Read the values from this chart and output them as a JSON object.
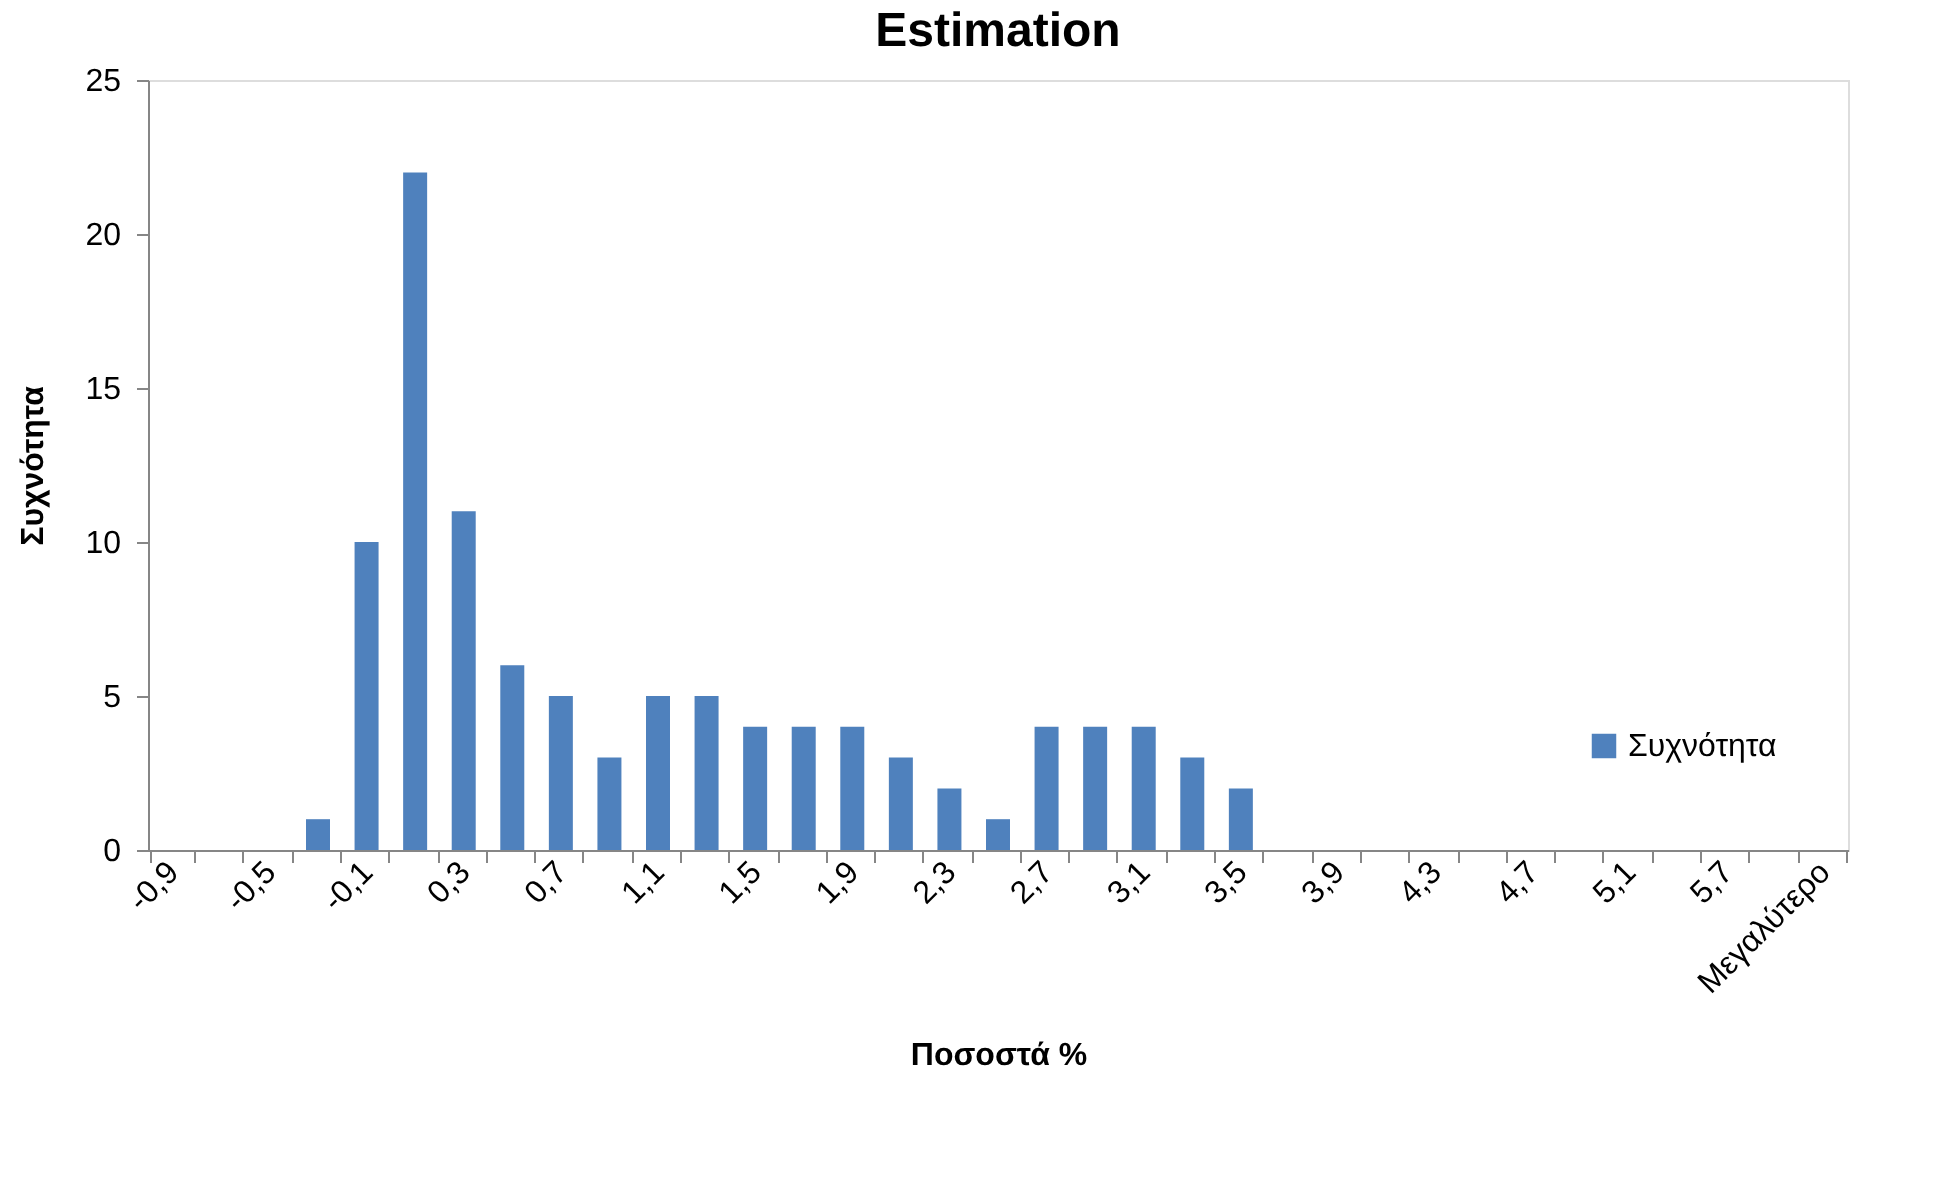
{
  "chart_data": {
    "type": "bar",
    "title": "Estimation",
    "xlabel": "Ποσοστά %",
    "ylabel": "Συχνότητα",
    "categories": [
      "-0,9",
      null,
      "-0,5",
      null,
      "-0,1",
      null,
      "0,3",
      null,
      "0,7",
      null,
      "1,1",
      null,
      "1,5",
      null,
      "1,9",
      null,
      "2,3",
      null,
      "2,7",
      null,
      "3,1",
      null,
      "3,5",
      null,
      "3,9",
      null,
      "4,3",
      null,
      "4,7",
      null,
      "5,1",
      null,
      "5,7",
      null,
      "Μεγαλύτερο"
    ],
    "series": [
      {
        "name": "Συχνότητα",
        "color": "#4f81bd",
        "values": [
          0,
          0,
          0,
          1,
          10,
          22,
          11,
          6,
          5,
          3,
          5,
          5,
          4,
          4,
          4,
          3,
          2,
          1,
          4,
          4,
          4,
          3,
          2,
          0,
          0,
          0,
          0,
          0,
          0,
          0,
          0,
          0,
          0,
          0,
          0
        ]
      }
    ],
    "ylim": [
      0,
      25
    ],
    "yticks": [
      0,
      5,
      10,
      15,
      20,
      25
    ],
    "grid": false,
    "legend": "right"
  }
}
